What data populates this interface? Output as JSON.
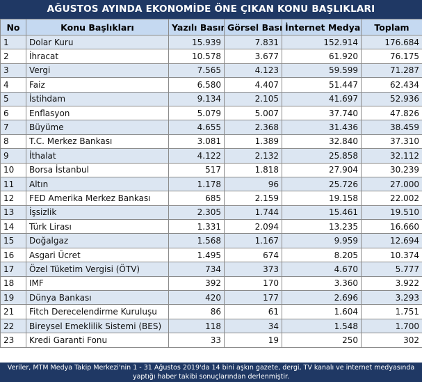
{
  "title": "AĞUSTOS AYINDA EKONOMİDE ÖNE ÇIKAN KONU BAŞLIKLARI",
  "table": {
    "headers": [
      "No",
      "Konu Başlıkları",
      "Yazılı Basın",
      "Görsel Basın",
      "İnternet Medyası",
      "Toplam"
    ],
    "rows": [
      [
        "1",
        "Dolar Kuru",
        "15.939",
        "7.831",
        "152.914",
        "176.684"
      ],
      [
        "2",
        "İhracat",
        "10.578",
        "3.677",
        "61.920",
        "76.175"
      ],
      [
        "3",
        "Vergi",
        "7.565",
        "4.123",
        "59.599",
        "71.287"
      ],
      [
        "4",
        "Faiz",
        "6.580",
        "4.407",
        "51.447",
        "62.434"
      ],
      [
        "5",
        "İstihdam",
        "9.134",
        "2.105",
        "41.697",
        "52.936"
      ],
      [
        "6",
        "Enflasyon",
        "5.079",
        "5.007",
        "37.740",
        "47.826"
      ],
      [
        "7",
        "Büyüme",
        "4.655",
        "2.368",
        "31.436",
        "38.459"
      ],
      [
        "8",
        "T.C. Merkez Bankası",
        "3.081",
        "1.389",
        "32.840",
        "37.310"
      ],
      [
        "9",
        "İthalat",
        "4.122",
        "2.132",
        "25.858",
        "32.112"
      ],
      [
        "10",
        "Borsa İstanbul",
        "517",
        "1.818",
        "27.904",
        "30.239"
      ],
      [
        "11",
        "Altın",
        "1.178",
        "96",
        "25.726",
        "27.000"
      ],
      [
        "12",
        "FED Amerika Merkez Bankası",
        "685",
        "2.159",
        "19.158",
        "22.002"
      ],
      [
        "13",
        "İşsizlik",
        "2.305",
        "1.744",
        "15.461",
        "19.510"
      ],
      [
        "14",
        "Türk Lirası",
        "1.331",
        "2.094",
        "13.235",
        "16.660"
      ],
      [
        "15",
        "Doğalgaz",
        "1.568",
        "1.167",
        "9.959",
        "12.694"
      ],
      [
        "16",
        "Asgari Ücret",
        "1.495",
        "674",
        "8.205",
        "10.374"
      ],
      [
        "17",
        "Özel Tüketim Vergisi (ÖTV)",
        "734",
        "373",
        "4.670",
        "5.777"
      ],
      [
        "18",
        "IMF",
        "392",
        "170",
        "3.360",
        "3.922"
      ],
      [
        "19",
        "Dünya Bankası",
        "420",
        "177",
        "2.696",
        "3.293"
      ],
      [
        "21",
        "Fitch Derecelendirme Kuruluşu",
        "86",
        "61",
        "1.604",
        "1.751"
      ],
      [
        "22",
        "Bireysel Emeklilik Sistemi (BES)",
        "118",
        "34",
        "1.548",
        "1.700"
      ],
      [
        "23",
        "Kredi Garanti Fonu",
        "33",
        "19",
        "250",
        "302"
      ]
    ]
  },
  "footer": "Veriler, MTM Medya Takip Merkezi'nin 1 - 31 Ağustos 2019'da 14 bini aşkın gazete, dergi, TV kanalı ve internet medyasında yaptığı haber takibi sonuçlarından derlenmiştir."
}
